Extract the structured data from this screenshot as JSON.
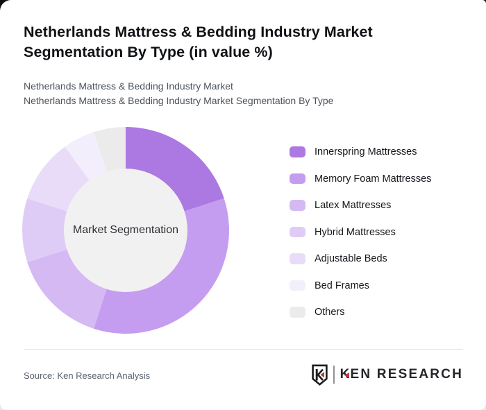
{
  "header": {
    "title": "Netherlands Mattress & Bedding Industry Market Segmentation By Type (in value %)",
    "subtitle_line1": "Netherlands Mattress & Bedding Industry Market",
    "subtitle_line2": "Netherlands Mattress & Bedding Industry Market Segmentation By Type"
  },
  "chart_data": {
    "type": "pie",
    "variant": "donut",
    "title": "Netherlands Mattress & Bedding Industry Market Segmentation By Type (in value %)",
    "center_label": "Market Segmentation",
    "unit": "value %",
    "categories": [
      "Innerspring Mattresses",
      "Memory Foam Mattresses",
      "Latex Mattresses",
      "Hybrid Mattresses",
      "Adjustable Beds",
      "Bed Frames",
      "Others"
    ],
    "values": [
      20,
      35,
      15,
      10,
      10,
      5,
      5
    ],
    "colors": [
      "#ac79e2",
      "#c59df0",
      "#d5b9f3",
      "#dfccf6",
      "#e9dcf9",
      "#f3eefb",
      "#ebebeb"
    ],
    "hole_color": "#f1f1f1",
    "hole_ratio": 0.6,
    "start_angle_deg": 0,
    "direction": "clockwise",
    "legend_position": "right"
  },
  "footer": {
    "source": "Source: Ken Research Analysis",
    "logo": {
      "emblem": "K-shield",
      "brand_k": "K",
      "brand_rest": "EN RESEARCH",
      "accent_color": "#bf3a34"
    }
  }
}
